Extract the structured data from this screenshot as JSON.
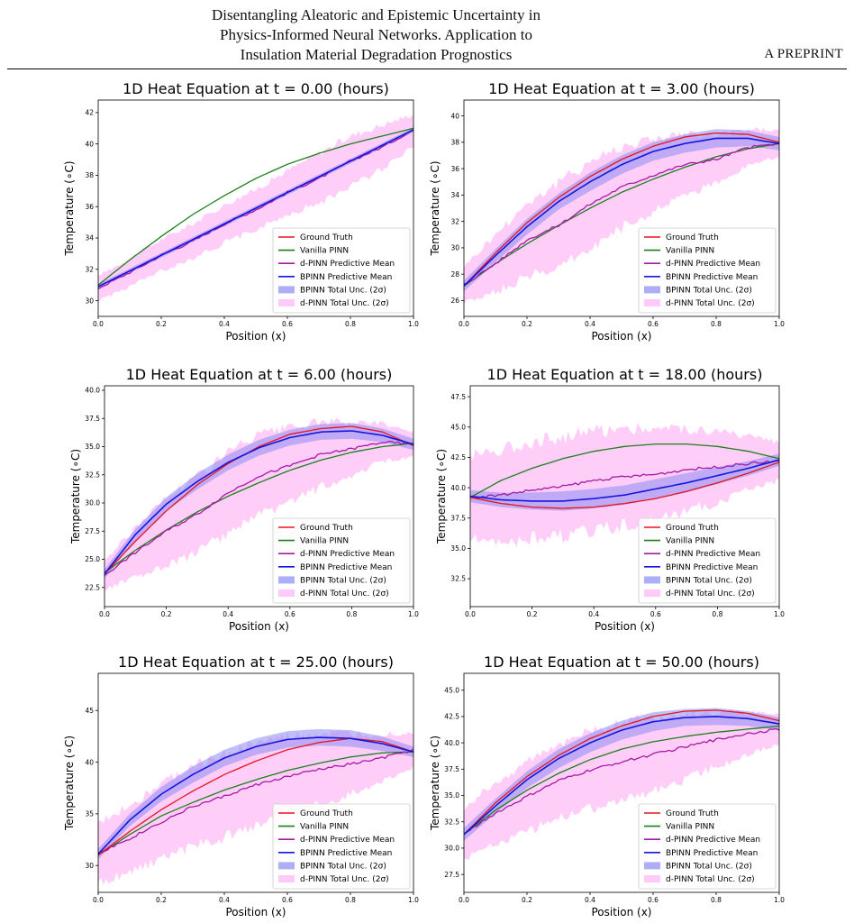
{
  "header": {
    "title_lines": [
      "Disentangling Aleatoric and Epistemic Uncertainty in",
      "Physics-Informed Neural Networks. Application to",
      "Insulation Material Degradation Prognostics"
    ],
    "right_label": "A PREPRINT"
  },
  "colors": {
    "ground_truth": "#e8141c",
    "vanilla": "#1b7f1b",
    "dpinn_mean": "#a51aa5",
    "bpinn_mean": "#1515e0",
    "bpinn_band": "#8c8cf2",
    "dpinn_band": "#ffb4f5"
  },
  "chart_data": [
    {
      "type": "line",
      "title": "1D Heat Equation at t = 0.00 (hours)",
      "xlabel": "Position (x)",
      "ylabel": "Temperature (∘C)",
      "xlim": [
        0,
        1
      ],
      "ylim": [
        29,
        42.8
      ],
      "xticks": [
        "0.0",
        "0.2",
        "0.4",
        "0.6",
        "0.8",
        "1.0"
      ],
      "yticks": [
        30,
        32,
        34,
        36,
        38,
        40,
        42
      ],
      "ytick_labels": [
        "30",
        "32",
        "34",
        "36",
        "38",
        "40",
        "42"
      ],
      "x": [
        0,
        0.1,
        0.2,
        0.3,
        0.4,
        0.5,
        0.6,
        0.7,
        0.8,
        0.9,
        1.0
      ],
      "series": [
        {
          "name": "Ground Truth",
          "values": [
            30.9,
            31.9,
            32.9,
            33.9,
            34.9,
            35.9,
            36.9,
            37.9,
            38.9,
            39.9,
            40.9
          ]
        },
        {
          "name": "Vanilla PINN",
          "values": [
            31.0,
            32.6,
            34.1,
            35.5,
            36.7,
            37.8,
            38.7,
            39.4,
            40.0,
            40.5,
            41.0
          ]
        },
        {
          "name": "d-PINN Predictive Mean",
          "values": [
            30.8,
            31.8,
            32.9,
            33.8,
            34.9,
            35.8,
            36.9,
            37.8,
            38.9,
            39.8,
            40.9
          ]
        },
        {
          "name": "BPINN Predictive Mean",
          "values": [
            30.9,
            31.9,
            32.9,
            33.9,
            34.9,
            35.9,
            36.9,
            37.9,
            38.9,
            39.9,
            40.9
          ]
        }
      ],
      "bpinn_band": {
        "name": "BPINN Total Unc. (2σ)",
        "halfwidth": [
          0.15,
          0.15,
          0.15,
          0.15,
          0.15,
          0.15,
          0.15,
          0.15,
          0.15,
          0.15,
          0.15
        ]
      },
      "dpinn_band": {
        "name": "d-PINN Total Unc. (2σ)",
        "halfwidth": [
          0.8,
          0.9,
          1.0,
          1.1,
          1.2,
          1.3,
          1.4,
          1.6,
          1.6,
          1.4,
          1.0
        ]
      }
    },
    {
      "type": "line",
      "title": "1D Heat Equation at t = 3.00 (hours)",
      "xlabel": "Position (x)",
      "ylabel": "Temperature (∘C)",
      "xlim": [
        0,
        1
      ],
      "ylim": [
        24.8,
        41.2
      ],
      "xticks": [
        "0.0",
        "0.2",
        "0.4",
        "0.6",
        "0.8",
        "1.0"
      ],
      "yticks": [
        26,
        28,
        30,
        32,
        34,
        36,
        38,
        40
      ],
      "ytick_labels": [
        "26",
        "28",
        "30",
        "32",
        "34",
        "36",
        "38",
        "40"
      ],
      "x": [
        0,
        0.1,
        0.2,
        0.3,
        0.4,
        0.5,
        0.6,
        0.7,
        0.8,
        0.9,
        1.0
      ],
      "series": [
        {
          "name": "Ground Truth",
          "values": [
            27.1,
            29.6,
            31.9,
            33.8,
            35.4,
            36.7,
            37.7,
            38.4,
            38.7,
            38.6,
            38.0
          ]
        },
        {
          "name": "Vanilla PINN",
          "values": [
            27.1,
            28.8,
            30.3,
            31.7,
            33.0,
            34.2,
            35.2,
            36.1,
            36.9,
            37.5,
            37.9
          ]
        },
        {
          "name": "d-PINN Predictive Mean",
          "values": [
            27.2,
            28.8,
            30.6,
            31.7,
            33.3,
            34.6,
            35.5,
            36.3,
            36.7,
            37.6,
            37.9
          ]
        },
        {
          "name": "BPINN Predictive Mean",
          "values": [
            27.1,
            29.4,
            31.6,
            33.5,
            35.0,
            36.3,
            37.3,
            37.9,
            38.3,
            38.3,
            37.9
          ]
        }
      ],
      "bpinn_band": {
        "name": "BPINN Total Unc. (2σ)",
        "halfwidth": [
          0.4,
          0.5,
          0.6,
          0.6,
          0.7,
          0.7,
          0.7,
          0.7,
          0.7,
          0.6,
          0.5
        ]
      },
      "dpinn_band": {
        "name": "d-PINN Total Unc. (2σ)",
        "halfwidth": [
          1.4,
          2.2,
          2.8,
          3.2,
          3.3,
          3.1,
          2.8,
          2.3,
          1.8,
          1.4,
          1.0
        ]
      }
    },
    {
      "type": "line",
      "title": "1D Heat Equation at t = 6.00 (hours)",
      "xlabel": "Position (x)",
      "ylabel": "Temperature (∘C)",
      "xlim": [
        0,
        1
      ],
      "ylim": [
        20.8,
        40.4
      ],
      "xticks": [
        "0.0",
        "0.2",
        "0.4",
        "0.6",
        "0.8",
        "1.0"
      ],
      "yticks": [
        22.5,
        25.0,
        27.5,
        30.0,
        32.5,
        35.0,
        37.5,
        40.0
      ],
      "ytick_labels": [
        "22.5",
        "25.0",
        "27.5",
        "30.0",
        "32.5",
        "35.0",
        "37.5",
        "40.0"
      ],
      "x": [
        0,
        0.1,
        0.2,
        0.3,
        0.4,
        0.5,
        0.6,
        0.7,
        0.8,
        0.9,
        1.0
      ],
      "series": [
        {
          "name": "Ground Truth",
          "values": [
            23.7,
            26.6,
            29.3,
            31.6,
            33.5,
            35.0,
            36.1,
            36.6,
            36.8,
            36.3,
            35.1
          ]
        },
        {
          "name": "Vanilla PINN",
          "values": [
            23.8,
            25.8,
            27.6,
            29.2,
            30.6,
            31.8,
            32.9,
            33.8,
            34.5,
            35.0,
            35.3
          ]
        },
        {
          "name": "d-PINN Predictive Mean",
          "values": [
            23.6,
            25.6,
            27.5,
            29.0,
            30.9,
            32.4,
            33.3,
            34.3,
            34.8,
            35.4,
            35.2
          ]
        },
        {
          "name": "BPINN Predictive Mean",
          "values": [
            23.7,
            27.2,
            29.9,
            31.9,
            33.6,
            34.9,
            35.8,
            36.3,
            36.4,
            36.0,
            35.2
          ]
        }
      ],
      "bpinn_band": {
        "name": "BPINN Total Unc. (2σ)",
        "halfwidth": [
          0.4,
          0.5,
          0.6,
          0.7,
          0.7,
          0.7,
          0.7,
          0.7,
          0.7,
          0.6,
          0.5
        ]
      },
      "dpinn_band": {
        "name": "d-PINN Total Unc. (2σ)",
        "halfwidth": [
          1.3,
          2.2,
          3.0,
          3.4,
          3.6,
          3.6,
          3.3,
          2.9,
          2.3,
          1.7,
          1.1
        ]
      }
    },
    {
      "type": "line",
      "title": "1D Heat Equation at t = 18.00 (hours)",
      "xlabel": "Position (x)",
      "ylabel": "Temperature (∘C)",
      "xlim": [
        0,
        1
      ],
      "ylim": [
        30.2,
        48.4
      ],
      "xticks": [
        "0.0",
        "0.2",
        "0.4",
        "0.6",
        "0.8",
        "1.0"
      ],
      "yticks": [
        32.5,
        35.0,
        37.5,
        40.0,
        42.5,
        45.0,
        47.5
      ],
      "ytick_labels": [
        "32.5",
        "35.0",
        "37.5",
        "40.0",
        "42.5",
        "45.0",
        "47.5"
      ],
      "x": [
        0,
        0.1,
        0.2,
        0.3,
        0.4,
        0.5,
        0.6,
        0.7,
        0.8,
        0.9,
        1.0
      ],
      "series": [
        {
          "name": "Ground Truth",
          "values": [
            39.2,
            38.7,
            38.4,
            38.3,
            38.4,
            38.7,
            39.1,
            39.7,
            40.4,
            41.2,
            42.1
          ]
        },
        {
          "name": "Vanilla PINN",
          "values": [
            39.2,
            40.6,
            41.6,
            42.4,
            43.0,
            43.4,
            43.6,
            43.6,
            43.4,
            43.0,
            42.4
          ]
        },
        {
          "name": "d-PINN Predictive Mean",
          "values": [
            39.2,
            39.4,
            39.8,
            40.1,
            40.6,
            40.9,
            41.1,
            41.5,
            41.7,
            42.0,
            42.2
          ]
        },
        {
          "name": "BPINN Predictive Mean",
          "values": [
            39.3,
            39.0,
            38.9,
            38.9,
            39.1,
            39.4,
            39.9,
            40.4,
            41.0,
            41.6,
            42.3
          ]
        }
      ],
      "bpinn_band": {
        "name": "BPINN Total Unc. (2σ)",
        "halfwidth": [
          0.5,
          0.6,
          0.7,
          0.8,
          0.8,
          0.8,
          0.8,
          0.8,
          0.7,
          0.6,
          0.5
        ]
      },
      "dpinn_band": {
        "name": "d-PINN Total Unc. (2σ)",
        "halfwidth": [
          3.5,
          3.8,
          4.0,
          4.1,
          4.1,
          4.0,
          3.8,
          3.4,
          2.9,
          2.2,
          1.6
        ]
      }
    },
    {
      "type": "line",
      "title": "1D Heat Equation at t = 25.00 (hours)",
      "xlabel": "Position (x)",
      "ylabel": "Temperature (∘C)",
      "xlim": [
        0,
        1
      ],
      "ylim": [
        27.4,
        48.6
      ],
      "xticks": [
        "0.0",
        "0.2",
        "0.4",
        "0.6",
        "0.8",
        "1.0"
      ],
      "yticks": [
        30,
        35,
        40,
        45
      ],
      "ytick_labels": [
        "30",
        "35",
        "40",
        "45"
      ],
      "x": [
        0,
        0.1,
        0.2,
        0.3,
        0.4,
        0.5,
        0.6,
        0.7,
        0.8,
        0.9,
        1.0
      ],
      "series": [
        {
          "name": "Ground Truth",
          "values": [
            31.0,
            33.3,
            35.4,
            37.2,
            38.8,
            40.1,
            41.2,
            41.9,
            42.3,
            42.0,
            41.0
          ]
        },
        {
          "name": "Vanilla PINN",
          "values": [
            31.0,
            33.0,
            34.8,
            36.1,
            37.3,
            38.3,
            39.2,
            39.9,
            40.5,
            40.9,
            41.0
          ]
        },
        {
          "name": "d-PINN Predictive Mean",
          "values": [
            31.2,
            32.6,
            34.2,
            35.7,
            36.7,
            37.8,
            38.6,
            39.3,
            39.8,
            40.4,
            41.2
          ]
        },
        {
          "name": "BPINN Predictive Mean",
          "values": [
            31.1,
            34.4,
            36.9,
            38.8,
            40.4,
            41.5,
            42.2,
            42.4,
            42.3,
            41.8,
            41.0
          ]
        }
      ],
      "bpinn_band": {
        "name": "BPINN Total Unc. (2σ)",
        "halfwidth": [
          0.5,
          0.6,
          0.7,
          0.8,
          0.8,
          0.8,
          0.8,
          0.8,
          0.8,
          0.7,
          0.5
        ]
      },
      "dpinn_band": {
        "name": "d-PINN Total Unc. (2σ)",
        "halfwidth": [
          2.8,
          3.3,
          3.6,
          3.9,
          4.0,
          4.0,
          3.8,
          3.4,
          2.9,
          2.3,
          1.7
        ]
      }
    },
    {
      "type": "line",
      "title": "1D Heat Equation at t = 50.00 (hours)",
      "xlabel": "Position (x)",
      "ylabel": "Temperature (∘C)",
      "xlim": [
        0,
        1
      ],
      "ylim": [
        25.8,
        46.6
      ],
      "xticks": [
        "0.0",
        "0.2",
        "0.4",
        "0.6",
        "0.8",
        "1.0"
      ],
      "yticks": [
        27.5,
        30.0,
        32.5,
        35.0,
        37.5,
        40.0,
        42.5,
        45.0
      ],
      "ytick_labels": [
        "27.5",
        "30.0",
        "32.5",
        "35.0",
        "37.5",
        "40.0",
        "42.5",
        "45.0"
      ],
      "x": [
        0,
        0.1,
        0.2,
        0.3,
        0.4,
        0.5,
        0.6,
        0.7,
        0.8,
        0.9,
        1.0
      ],
      "series": [
        {
          "name": "Ground Truth",
          "values": [
            31.3,
            34.3,
            36.8,
            38.8,
            40.4,
            41.6,
            42.5,
            43.0,
            43.1,
            42.8,
            42.1
          ]
        },
        {
          "name": "Vanilla PINN",
          "values": [
            31.3,
            33.6,
            35.5,
            37.1,
            38.4,
            39.4,
            40.1,
            40.6,
            41.0,
            41.3,
            41.6
          ]
        },
        {
          "name": "d-PINN Predictive Mean",
          "values": [
            31.4,
            33.3,
            34.9,
            36.4,
            37.4,
            38.2,
            38.9,
            39.6,
            40.3,
            40.9,
            41.3
          ]
        },
        {
          "name": "BPINN Predictive Mean",
          "values": [
            31.3,
            34.0,
            36.5,
            38.5,
            40.0,
            41.2,
            42.0,
            42.4,
            42.5,
            42.3,
            41.8
          ]
        }
      ],
      "bpinn_band": {
        "name": "BPINN Total Unc. (2σ)",
        "halfwidth": [
          0.6,
          0.7,
          0.8,
          0.9,
          0.9,
          0.9,
          0.9,
          0.8,
          0.8,
          0.7,
          0.6
        ]
      },
      "dpinn_band": {
        "name": "d-PINN Total Unc. (2σ)",
        "halfwidth": [
          2.4,
          2.9,
          3.3,
          3.6,
          3.7,
          3.7,
          3.5,
          3.1,
          2.6,
          2.0,
          1.4
        ]
      }
    }
  ]
}
